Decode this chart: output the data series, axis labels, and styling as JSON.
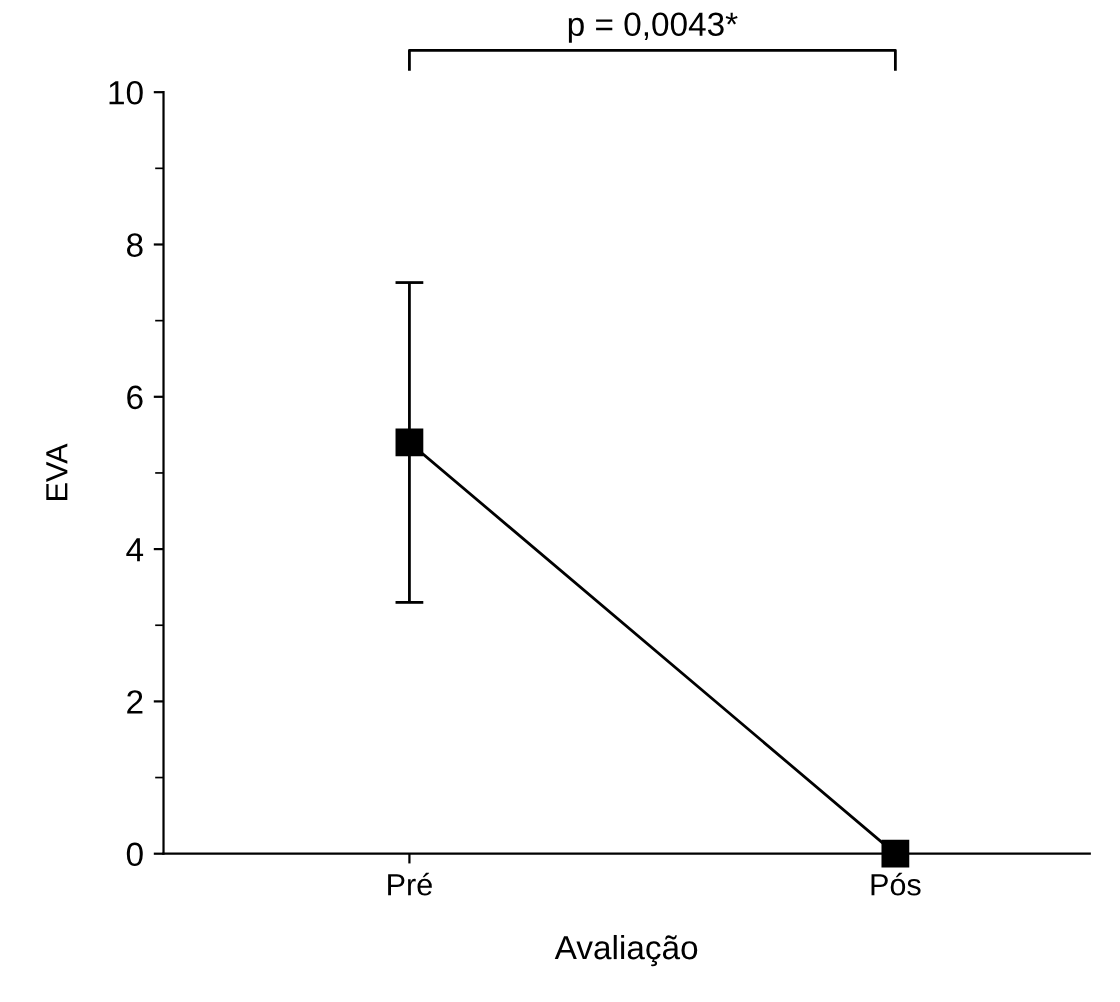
{
  "chart_data": {
    "type": "line",
    "xlabel": "Avaliação",
    "ylabel": "EVA",
    "categories": [
      "Pré",
      "Pós"
    ],
    "series": [
      {
        "color": "#000000",
        "values": [
          5.4,
          0
        ],
        "errors": [
          [
            3.3,
            7.5
          ],
          null
        ]
      }
    ],
    "ylim": [
      0,
      10
    ],
    "yticks": [
      0,
      {
        "value": 1,
        "label": null
      },
      2,
      {
        "value": 3,
        "label": null
      },
      4,
      {
        "value": 5,
        "label": null
      },
      6,
      {
        "value": 7,
        "label": null
      },
      8,
      {
        "value": 9,
        "label": null
      },
      10
    ],
    "marker": "square",
    "line_style": "solid",
    "grid": false,
    "legend": false,
    "annotations": [
      "p = 0,0043*"
    ]
  }
}
